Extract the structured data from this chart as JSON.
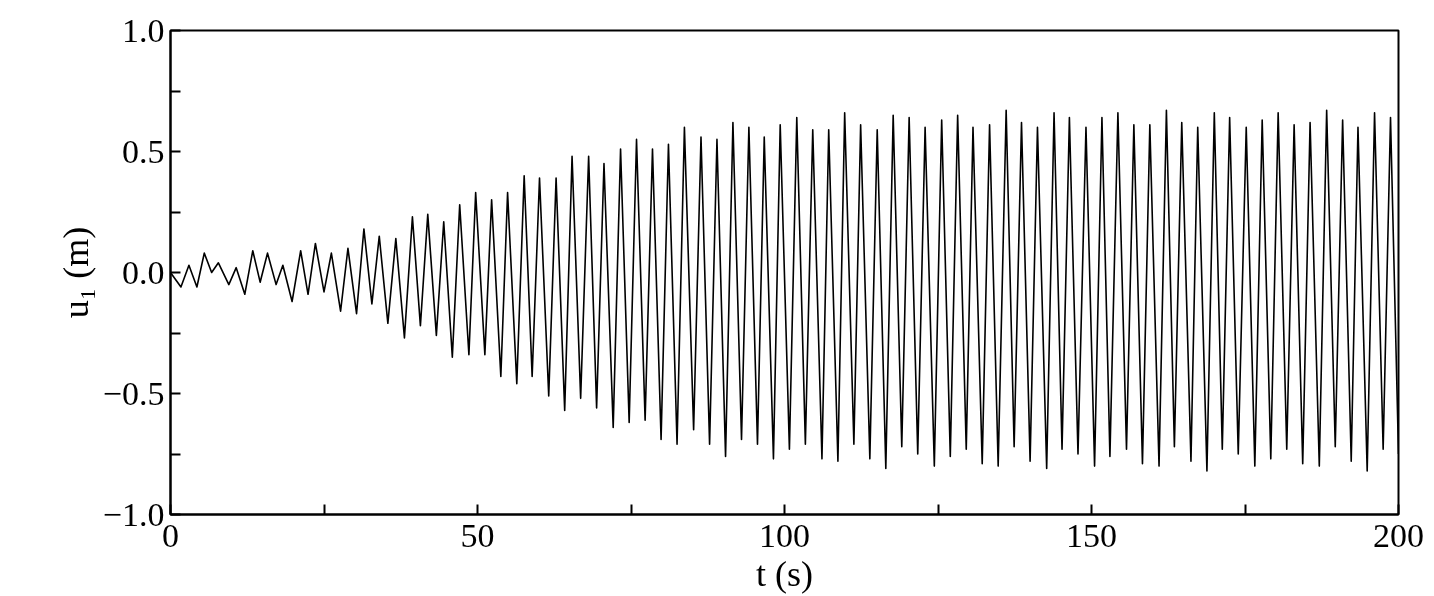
{
  "chart_data": {
    "type": "line",
    "xlabel": "t (s)",
    "ylabel": "u₁ (m)",
    "xlim": [
      0,
      200
    ],
    "ylim": [
      -1.0,
      1.0
    ],
    "xticks": [
      0,
      {
        "value": 25,
        "label": null
      },
      50,
      {
        "value": 75,
        "label": null
      },
      100,
      {
        "value": 125,
        "label": null
      },
      150,
      {
        "value": 175,
        "label": null
      },
      200
    ],
    "yticks": [
      {
        "value": -1.0,
        "label": "−1.0"
      },
      {
        "value": -0.75,
        "label": null
      },
      {
        "value": -0.5,
        "label": "−0.5"
      },
      {
        "value": -0.25,
        "label": null
      },
      {
        "value": 0.0,
        "label": "0.0"
      },
      {
        "value": 0.25,
        "label": null
      },
      {
        "value": 0.5,
        "label": "0.5"
      },
      {
        "value": 0.75,
        "label": null
      },
      {
        "value": 1.0,
        "label": "1.0"
      }
    ],
    "grid": false,
    "marker": "none",
    "line_style": "solid",
    "series": [
      {
        "color": "#000000",
        "x": [
          0,
          1.7,
          3.0,
          4.3,
          5.5,
          6.7,
          7.8,
          9.5,
          10.7,
          12.1,
          13.4,
          14.6,
          15.8,
          17.2,
          18.3,
          19.8,
          21.2,
          22.4,
          23.6,
          25.0,
          26.2,
          27.7,
          28.9,
          30.3,
          31.5,
          32.8,
          34.0,
          35.4,
          36.7,
          38.1,
          39.4,
          40.7,
          41.9,
          43.3,
          44.5,
          45.9,
          47.1,
          48.6,
          49.7,
          51.2,
          52.3,
          53.8,
          54.9,
          56.4,
          57.6,
          58.9,
          60.1,
          61.6,
          62.8,
          64.2,
          65.4,
          66.8,
          68.1,
          69.4,
          70.6,
          72.1,
          73.3,
          74.7,
          75.9,
          77.3,
          78.5,
          79.9,
          81.1,
          82.5,
          83.7,
          85.2,
          86.4,
          87.8,
          89.0,
          90.4,
          91.6,
          93.0,
          94.2,
          95.6,
          96.7,
          98.2,
          99.3,
          100.8,
          102.0,
          103.4,
          104.6,
          106.1,
          107.2,
          108.7,
          109.8,
          111.3,
          112.4,
          113.9,
          115.1,
          116.5,
          117.7,
          119.1,
          120.3,
          121.7,
          122.9,
          124.4,
          125.6,
          127.0,
          128.2,
          129.6,
          130.7,
          132.2,
          133.4,
          134.8,
          136.1,
          137.4,
          138.6,
          140.0,
          141.2,
          142.7,
          143.9,
          145.2,
          146.4,
          147.8,
          149.1,
          150.5,
          151.7,
          153.0,
          154.3,
          155.7,
          156.9,
          158.3,
          159.5,
          161.0,
          162.2,
          163.5,
          164.7,
          166.2,
          167.3,
          168.8,
          170.0,
          171.3,
          172.5,
          173.9,
          175.2,
          176.6,
          177.8,
          179.2,
          180.4,
          181.8,
          183.0,
          184.4,
          185.6,
          187.1,
          188.3,
          189.7,
          190.9,
          192.3,
          193.4,
          194.9,
          196.1,
          197.5,
          198.7,
          200
        ],
        "values": [
          0,
          -0.06,
          0.03,
          -0.06,
          0.08,
          0.0,
          0.04,
          -0.05,
          0.02,
          -0.09,
          0.09,
          -0.04,
          0.08,
          -0.05,
          0.03,
          -0.12,
          0.09,
          -0.09,
          0.12,
          -0.08,
          0.08,
          -0.16,
          0.1,
          -0.17,
          0.18,
          -0.13,
          0.15,
          -0.21,
          0.14,
          -0.27,
          0.23,
          -0.22,
          0.24,
          -0.26,
          0.21,
          -0.35,
          0.28,
          -0.34,
          0.33,
          -0.34,
          0.3,
          -0.43,
          0.33,
          -0.46,
          0.4,
          -0.43,
          0.39,
          -0.51,
          0.39,
          -0.57,
          0.48,
          -0.52,
          0.48,
          -0.56,
          0.45,
          -0.64,
          0.51,
          -0.62,
          0.55,
          -0.61,
          0.51,
          -0.69,
          0.53,
          -0.71,
          0.6,
          -0.65,
          0.56,
          -0.71,
          0.55,
          -0.76,
          0.62,
          -0.69,
          0.6,
          -0.71,
          0.56,
          -0.77,
          0.61,
          -0.73,
          0.64,
          -0.71,
          0.59,
          -0.77,
          0.59,
          -0.78,
          0.66,
          -0.71,
          0.61,
          -0.77,
          0.59,
          -0.81,
          0.65,
          -0.72,
          0.64,
          -0.75,
          0.6,
          -0.8,
          0.63,
          -0.76,
          0.65,
          -0.73,
          0.6,
          -0.79,
          0.61,
          -0.8,
          0.67,
          -0.72,
          0.62,
          -0.78,
          0.6,
          -0.81,
          0.66,
          -0.73,
          0.64,
          -0.75,
          0.6,
          -0.8,
          0.64,
          -0.76,
          0.66,
          -0.73,
          0.61,
          -0.79,
          0.61,
          -0.8,
          0.67,
          -0.72,
          0.62,
          -0.78,
          0.6,
          -0.82,
          0.66,
          -0.73,
          0.64,
          -0.75,
          0.6,
          -0.8,
          0.63,
          -0.77,
          0.66,
          -0.73,
          0.61,
          -0.79,
          0.62,
          -0.8,
          0.67,
          -0.72,
          0.63,
          -0.78,
          0.6,
          -0.82,
          0.66,
          -0.73,
          0.64,
          -0.75
        ]
      }
    ]
  }
}
